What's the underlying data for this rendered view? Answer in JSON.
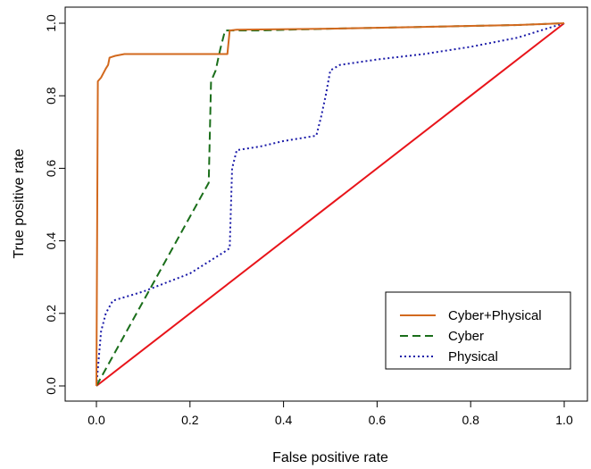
{
  "chart_data": {
    "type": "line",
    "title": "",
    "xlabel": "False positive rate",
    "ylabel": "True positive rate",
    "xlim": [
      0,
      1
    ],
    "ylim": [
      0,
      1
    ],
    "x_ticks": [
      "0.0",
      "0.2",
      "0.4",
      "0.6",
      "0.8",
      "1.0"
    ],
    "y_ticks": [
      "0.0",
      "0.2",
      "0.4",
      "0.6",
      "0.8",
      "1.0"
    ],
    "grid": false,
    "legend_position": "bottom-right",
    "series": [
      {
        "name": "Cyber+Physical",
        "color": "#d2691e",
        "style": "solid",
        "points": [
          [
            0,
            0
          ],
          [
            0.003,
            0.84
          ],
          [
            0.01,
            0.85
          ],
          [
            0.02,
            0.875
          ],
          [
            0.025,
            0.885
          ],
          [
            0.028,
            0.905
          ],
          [
            0.04,
            0.91
          ],
          [
            0.06,
            0.915
          ],
          [
            0.15,
            0.915
          ],
          [
            0.2,
            0.915
          ],
          [
            0.25,
            0.915
          ],
          [
            0.28,
            0.915
          ],
          [
            0.285,
            0.98
          ],
          [
            0.3,
            0.982
          ],
          [
            0.5,
            0.985
          ],
          [
            0.7,
            0.99
          ],
          [
            0.9,
            0.995
          ],
          [
            1.0,
            1.0
          ]
        ]
      },
      {
        "name": "Cyber",
        "color": "#1a6e1a",
        "style": "dashed",
        "points": [
          [
            0,
            0
          ],
          [
            0.24,
            0.56
          ],
          [
            0.245,
            0.84
          ],
          [
            0.255,
            0.87
          ],
          [
            0.26,
            0.9
          ],
          [
            0.265,
            0.93
          ],
          [
            0.275,
            0.98
          ],
          [
            0.35,
            0.98
          ],
          [
            0.5,
            0.985
          ],
          [
            0.7,
            0.99
          ],
          [
            0.9,
            0.995
          ],
          [
            1.0,
            1.0
          ]
        ]
      },
      {
        "name": "Physical",
        "color": "#1a1aa8",
        "style": "dotted",
        "points": [
          [
            0,
            0
          ],
          [
            0.01,
            0.15
          ],
          [
            0.02,
            0.2
          ],
          [
            0.035,
            0.235
          ],
          [
            0.1,
            0.26
          ],
          [
            0.2,
            0.31
          ],
          [
            0.28,
            0.375
          ],
          [
            0.285,
            0.38
          ],
          [
            0.29,
            0.6
          ],
          [
            0.3,
            0.65
          ],
          [
            0.35,
            0.66
          ],
          [
            0.4,
            0.675
          ],
          [
            0.47,
            0.69
          ],
          [
            0.48,
            0.74
          ],
          [
            0.49,
            0.8
          ],
          [
            0.5,
            0.87
          ],
          [
            0.52,
            0.885
          ],
          [
            0.6,
            0.9
          ],
          [
            0.7,
            0.915
          ],
          [
            0.8,
            0.935
          ],
          [
            0.9,
            0.96
          ],
          [
            1.0,
            1.0
          ]
        ]
      },
      {
        "name": "",
        "color": "#e8141a",
        "style": "solid",
        "points": [
          [
            0,
            0
          ],
          [
            1,
            1
          ]
        ]
      }
    ]
  }
}
